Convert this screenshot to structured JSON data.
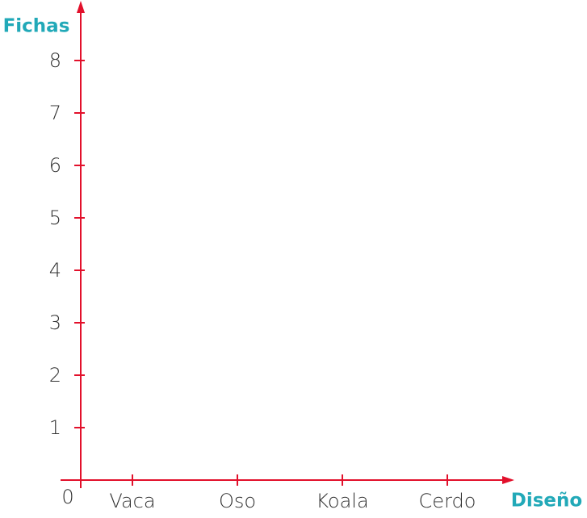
{
  "chart_data": {
    "type": "bar",
    "x_label": "Diseño",
    "y_label": "Fichas",
    "categories": [
      "Vaca",
      "Oso",
      "Koala",
      "Cerdo"
    ],
    "ylim": [
      0,
      8
    ],
    "yticks": [
      0,
      1,
      2,
      3,
      4,
      5,
      6,
      7,
      8
    ],
    "axis_color": "#e2102b",
    "label_color": "#22a9b8"
  }
}
